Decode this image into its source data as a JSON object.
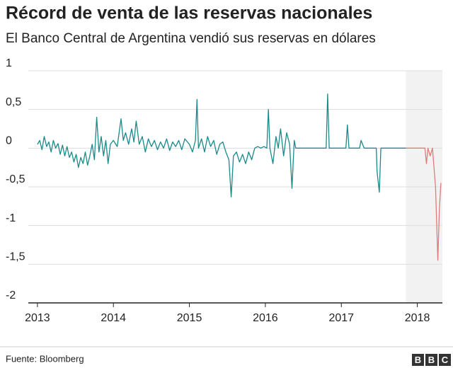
{
  "chart_data": {
    "type": "line",
    "title": "Récord de venta de las reservas nacionales",
    "subtitle": "El Banco Central de Argentina vendió sus reservas en dólares",
    "source": "Fuente: Bloomberg",
    "logo": [
      "B",
      "B",
      "C"
    ],
    "xlim": [
      2012.88,
      2018.33
    ],
    "xticks": [
      2013,
      2014,
      2015,
      2016,
      2017,
      2018
    ],
    "ylim": [
      -2,
      1
    ],
    "yticks": [
      1,
      {
        "value": 0.5,
        "label": "0,5"
      },
      0,
      {
        "value": -0.5,
        "label": "-0,5"
      },
      -1,
      {
        "value": -1.5,
        "label": "-1,5"
      },
      -2
    ],
    "grid": true,
    "highlight": [
      2017.85,
      2018.33
    ],
    "highlight_color": "#f2f2f2",
    "series": [
      {
        "color": "#1a8a8a",
        "x": [
          2013.0,
          2013.03,
          2013.06,
          2013.09,
          2013.12,
          2013.15,
          2013.18,
          2013.21,
          2013.24,
          2013.27,
          2013.3,
          2013.33,
          2013.36,
          2013.39,
          2013.42,
          2013.45,
          2013.48,
          2013.51,
          2013.54,
          2013.57,
          2013.6,
          2013.63,
          2013.66,
          2013.69,
          2013.72,
          2013.75,
          2013.78,
          2013.81,
          2013.84,
          2013.87,
          2013.9,
          2013.93,
          2013.96,
          2014.0,
          2014.05,
          2014.1,
          2014.13,
          2014.16,
          2014.2,
          2014.24,
          2014.27,
          2014.3,
          2014.34,
          2014.38,
          2014.42,
          2014.46,
          2014.5,
          2014.54,
          2014.58,
          2014.62,
          2014.66,
          2014.7,
          2014.74,
          2014.78,
          2014.82,
          2014.86,
          2014.9,
          2014.94,
          2015.0,
          2015.04,
          2015.08,
          2015.1,
          2015.12,
          2015.16,
          2015.2,
          2015.24,
          2015.28,
          2015.32,
          2015.36,
          2015.4,
          2015.44,
          2015.48,
          2015.52,
          2015.55,
          2015.58,
          2015.62,
          2015.66,
          2015.7,
          2015.74,
          2015.78,
          2015.82,
          2015.86,
          2015.9,
          2015.94,
          2015.98,
          2016.02,
          2016.04,
          2016.06,
          2016.1,
          2016.14,
          2016.17,
          2016.2,
          2016.24,
          2016.28,
          2016.32,
          2016.35,
          2016.38,
          2016.4,
          2016.6,
          2016.8,
          2016.82,
          2016.84,
          2017.06,
          2017.08,
          2017.1,
          2017.24,
          2017.26,
          2017.3,
          2017.46,
          2017.47,
          2017.5,
          2017.52,
          2017.85
        ],
        "values": [
          0.05,
          0.1,
          -0.02,
          0.15,
          0.02,
          0.08,
          -0.05,
          0.1,
          0.0,
          0.06,
          -0.08,
          0.04,
          -0.1,
          0.02,
          -0.12,
          -0.05,
          -0.18,
          -0.08,
          -0.25,
          -0.12,
          -0.2,
          -0.05,
          -0.22,
          -0.1,
          0.05,
          -0.15,
          0.4,
          -0.05,
          0.15,
          -0.1,
          0.1,
          -0.2,
          0.05,
          0.1,
          0.02,
          0.38,
          0.1,
          0.2,
          0.05,
          0.25,
          0.08,
          0.35,
          0.05,
          0.15,
          -0.05,
          0.12,
          0.02,
          0.1,
          -0.02,
          0.08,
          0.0,
          0.12,
          -0.03,
          0.08,
          0.02,
          0.1,
          -0.02,
          0.12,
          0.05,
          -0.05,
          0.1,
          0.63,
          0.0,
          0.12,
          -0.05,
          0.15,
          0.02,
          0.1,
          -0.08,
          0.05,
          0.08,
          -0.05,
          -0.15,
          -0.63,
          -0.1,
          -0.05,
          -0.18,
          -0.08,
          -0.2,
          -0.05,
          -0.15,
          0.0,
          0.02,
          0.0,
          0.02,
          0.0,
          0.5,
          0.0,
          -0.2,
          0.15,
          0.0,
          0.25,
          -0.1,
          0.2,
          0.05,
          -0.52,
          0.1,
          0.0,
          0.0,
          0.0,
          0.7,
          0.0,
          0.0,
          0.3,
          0.0,
          0.0,
          0.1,
          0.0,
          0.0,
          -0.3,
          -0.57,
          0.0,
          0.0
        ]
      },
      {
        "color": "#e07b7b",
        "x": [
          2017.85,
          2018.1,
          2018.12,
          2018.14,
          2018.17,
          2018.2,
          2018.24,
          2018.27,
          2018.29,
          2018.31
        ],
        "values": [
          0,
          0,
          -0.2,
          0,
          -0.1,
          0,
          -0.5,
          -1.45,
          -0.8,
          -0.45
        ]
      }
    ]
  }
}
